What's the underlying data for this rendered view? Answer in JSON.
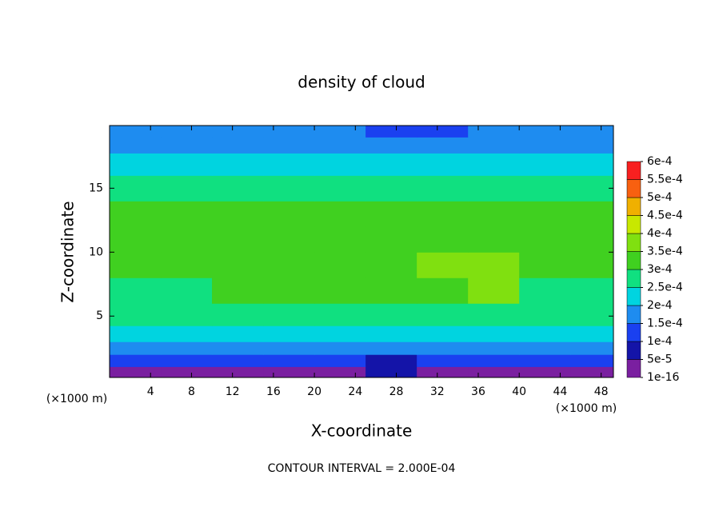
{
  "chart_data": {
    "type": "contour-fill",
    "title": "density of cloud",
    "x_label": "X-coordinate",
    "y_label": "Z-coordinate",
    "x_unit": "(×1000 m)",
    "annotation": "CONTOUR INTERVAL = 2.000E-04",
    "xlim": [
      0,
      49.2
    ],
    "ylim": [
      0.2,
      19.9
    ],
    "xticks": [
      4,
      8,
      12,
      16,
      20,
      24,
      28,
      32,
      36,
      40,
      44,
      48
    ],
    "yticks": [
      5,
      10,
      15
    ],
    "x": [
      2.5,
      7.5,
      12.5,
      17.5,
      22.5,
      27.5,
      32.5,
      37.5,
      42.5,
      47.5
    ],
    "z": [
      0.6,
      1.5,
      2.5,
      3.5,
      5,
      7,
      9,
      11,
      13,
      15,
      17,
      18.5,
      19.5
    ],
    "values": [
      [
        3e-05,
        4e-05,
        3e-05,
        3e-05,
        3e-05,
        6e-05,
        3e-05,
        3e-05,
        3e-05,
        4e-05
      ],
      [
        0.00012,
        0.00011,
        0.00012,
        0.00013,
        0.00012,
        9e-05,
        0.00013,
        0.00012,
        0.00011,
        0.0001
      ],
      [
        0.00017,
        0.00016,
        0.00017,
        0.00018,
        0.00017,
        0.00016,
        0.00019,
        0.00018,
        0.00015,
        0.00016
      ],
      [
        0.00022,
        0.00024,
        0.00023,
        0.00023,
        0.00024,
        0.00023,
        0.00024,
        0.00023,
        0.00021,
        0.00022
      ],
      [
        0.00027,
        0.00028,
        0.00027,
        0.00028,
        0.00028,
        0.00027,
        0.00029,
        0.00028,
        0.00026,
        0.00027
      ],
      [
        0.00029,
        0.00028,
        0.00031,
        0.00031,
        0.00031,
        0.00032,
        0.00034,
        0.00035,
        0.00029,
        0.00029
      ],
      [
        0.00031,
        0.00032,
        0.00032,
        0.00032,
        0.00032,
        0.00033,
        0.00036,
        0.00036,
        0.00032,
        0.00031
      ],
      [
        0.00032,
        0.00032,
        0.00033,
        0.00033,
        0.00033,
        0.00033,
        0.00034,
        0.00033,
        0.00032,
        0.00031
      ],
      [
        0.00031,
        0.00031,
        0.00032,
        0.00032,
        0.00032,
        0.00032,
        0.00032,
        0.00032,
        0.00031,
        0.00031
      ],
      [
        0.00028,
        0.00029,
        0.00029,
        0.00029,
        0.00029,
        0.00029,
        0.00029,
        0.00029,
        0.00029,
        0.00028
      ],
      [
        0.00022,
        0.00023,
        0.00024,
        0.00024,
        0.00024,
        0.00024,
        0.00024,
        0.00024,
        0.00023,
        0.00022
      ],
      [
        0.00018,
        0.00018,
        0.00019,
        0.00019,
        0.00019,
        0.00019,
        0.00019,
        0.00019,
        0.00018,
        0.00018
      ],
      [
        0.00016,
        0.00016,
        0.00016,
        0.00016,
        0.00015,
        0.00014,
        0.00014,
        0.00015,
        0.00016,
        0.00016
      ]
    ],
    "colorbar": {
      "levels": [
        {
          "value": 1e-16,
          "label": "1e-16"
        },
        {
          "value": 5e-05,
          "label": "5e-5"
        },
        {
          "value": 0.0001,
          "label": "1e-4"
        },
        {
          "value": 0.00015,
          "label": "1.5e-4"
        },
        {
          "value": 0.0002,
          "label": "2e-4"
        },
        {
          "value": 0.00025,
          "label": "2.5e-4"
        },
        {
          "value": 0.0003,
          "label": "3e-4"
        },
        {
          "value": 0.00035,
          "label": "3.5e-4"
        },
        {
          "value": 0.0004,
          "label": "4e-4"
        },
        {
          "value": 0.00045,
          "label": "4.5e-4"
        },
        {
          "value": 0.0005,
          "label": "5e-4"
        },
        {
          "value": 0.00055,
          "label": "5.5e-4"
        },
        {
          "value": 0.0006,
          "label": "6e-4"
        }
      ],
      "colors": [
        "#7a1fa0",
        "#1414a8",
        "#1a40f0",
        "#1e8cf0",
        "#00d4e0",
        "#10e080",
        "#40d020",
        "#80e010",
        "#c8e800",
        "#f0b000",
        "#f86010",
        "#f82020"
      ]
    }
  }
}
